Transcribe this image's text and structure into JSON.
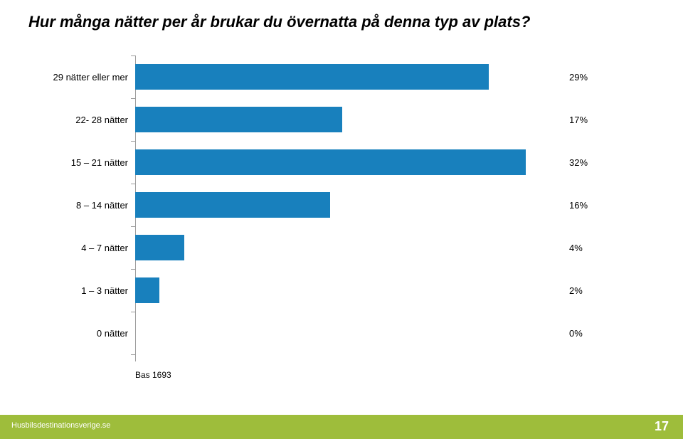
{
  "title": "Hur många nätter per år brukar du övernatta på denna typ av plats?",
  "title_fontsize": 22,
  "chart": {
    "type": "bar-horizontal",
    "categories": [
      "29 nätter eller mer",
      "22- 28 nätter",
      "15 – 21 nätter",
      "8 – 14 nätter",
      "4 – 7 nätter",
      "1 – 3 nätter",
      "0 nätter"
    ],
    "values": [
      29,
      17,
      32,
      16,
      4,
      2,
      0
    ],
    "value_labels": [
      "29%",
      "17%",
      "32%",
      "16%",
      "4%",
      "2%",
      "0%"
    ],
    "bar_color": "#1880bd",
    "cat_fontsize": 13,
    "val_fontsize": 13,
    "max_value": 35,
    "axis_color": "#9c9c9c",
    "tick_positions_pct": [
      0,
      14.3,
      28.6,
      42.9,
      57.1,
      71.4,
      85.7,
      100
    ]
  },
  "base_label": "Bas 1693",
  "base_fontsize": 12,
  "footer": {
    "bar_color": "#9ebd3b",
    "link_text": "Husbilsdestinationsverige.se",
    "page_number": "17"
  }
}
